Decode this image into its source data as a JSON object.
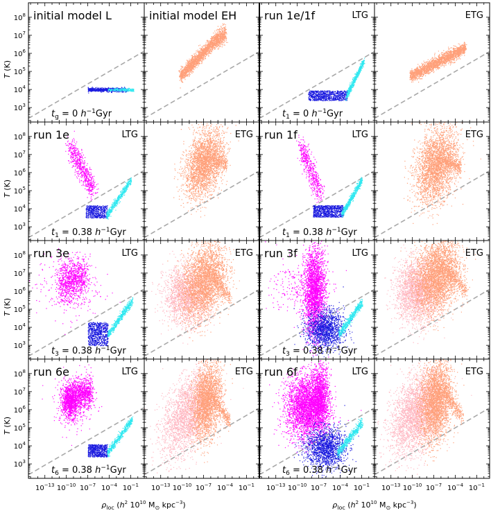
{
  "chart_data": {
    "type": "scatter",
    "x_axis": {
      "label": "ρ_loc (h² 10¹⁰ M⊙ kpc⁻³)",
      "scale": "log",
      "tick_labels": [
        "10^-13",
        "10^-10",
        "10^-7",
        "10^-4",
        "10^-1"
      ],
      "tick_exponents": [
        -13,
        -10,
        -7,
        -4,
        -1
      ],
      "range_log10": [
        -15.3,
        0.8
      ]
    },
    "y_axis": {
      "label": "T (K)",
      "scale": "log",
      "tick_labels": [
        "10^3",
        "10^4",
        "10^5",
        "10^6",
        "10^7",
        "10^8"
      ],
      "tick_exponents": [
        3,
        4,
        5,
        6,
        7,
        8
      ],
      "range_log10": [
        2.2,
        8.8
      ]
    },
    "reference_line": {
      "style": "dashed",
      "color": "#a8a8a8",
      "points_log10": [
        [
          -15.3,
          2.4
        ],
        [
          0.8,
          6.1
        ]
      ]
    },
    "colors": {
      "cold_dense": "#1a1adf",
      "cold_diffuse": "#30e8f0",
      "hot_ltg": "#ff00ff",
      "etg_new": "#ffa07a",
      "etg_old": "#ffb6c1",
      "dash": "#a8a8a8"
    },
    "panels": [
      {
        "row": 0,
        "col": 0,
        "title": "initial model L",
        "tag": "",
        "time_sym": "t",
        "time_sub": "g",
        "time_val": " = 0 ",
        "time_unit": "Gyr",
        "clouds": [
          {
            "color": "cold_dense",
            "n": 700,
            "shape": "hbar",
            "x": [
              -7,
              -1.5
            ],
            "y": 4.0,
            "w": 0.05
          },
          {
            "color": "cold_diffuse",
            "n": 250,
            "shape": "hbar",
            "x": [
              -4.2,
              -0.6
            ],
            "y": 4.0,
            "w": 0.04
          }
        ]
      },
      {
        "row": 0,
        "col": 1,
        "title": "initial model EH",
        "tag": "",
        "clouds": [
          {
            "color": "etg_new",
            "n": 1800,
            "shape": "band",
            "p1": [
              -10.3,
              4.75
            ],
            "p2": [
              -5.0,
              6.9
            ],
            "w": 0.18
          },
          {
            "color": "etg_new",
            "n": 400,
            "shape": "band",
            "p1": [
              -5.2,
              6.75
            ],
            "p2": [
              -4.0,
              7.1
            ],
            "w": 0.22
          }
        ]
      },
      {
        "row": 0,
        "col": 2,
        "title": "run 1e/1f",
        "tag": "LTG",
        "time_sym": "t",
        "time_sub": "1",
        "time_val": " = 0 ",
        "time_unit": "Gyr",
        "clouds": [
          {
            "color": "cold_dense",
            "n": 800,
            "shape": "box",
            "x": [
              -8.5,
              -3.0
            ],
            "y": [
              3.4,
              3.95
            ]
          },
          {
            "color": "cold_diffuse",
            "n": 500,
            "shape": "band",
            "p1": [
              -3.2,
              3.6
            ],
            "p2": [
              -0.7,
              5.6
            ],
            "w": 0.1
          }
        ]
      },
      {
        "row": 0,
        "col": 3,
        "title": "",
        "tag": "ETG",
        "clouds": [
          {
            "color": "etg_new",
            "n": 1800,
            "shape": "band",
            "p1": [
              -10.3,
              4.75
            ],
            "p2": [
              -3.4,
              6.15
            ],
            "w": 0.17
          },
          {
            "color": "etg_new",
            "n": 300,
            "shape": "band",
            "p1": [
              -3.8,
              6.1
            ],
            "p2": [
              -2.6,
              6.35
            ],
            "w": 0.12
          }
        ]
      },
      {
        "row": 1,
        "col": 0,
        "title": "run 1e",
        "tag": "LTG",
        "time_sym": "t",
        "time_sub": "1",
        "time_val": " = 0.38 ",
        "time_unit": "Gyr",
        "clouds": [
          {
            "color": "hot_ltg",
            "n": 650,
            "shape": "band",
            "p1": [
              -9.5,
              7.4
            ],
            "p2": [
              -6.3,
              5.1
            ],
            "w": 0.3,
            "jitter": 0.55
          },
          {
            "color": "cold_dense",
            "n": 500,
            "shape": "box",
            "x": [
              -7.3,
              -4.3
            ],
            "y": [
              3.5,
              4.2
            ]
          },
          {
            "color": "cold_diffuse",
            "n": 500,
            "shape": "band",
            "p1": [
              -4.4,
              3.6
            ],
            "p2": [
              -1.0,
              5.6
            ],
            "w": 0.1
          }
        ]
      },
      {
        "row": 1,
        "col": 1,
        "title": "",
        "tag": "ETG",
        "clouds": [
          {
            "color": "etg_new",
            "n": 2600,
            "shape": "blob",
            "cx": -7.0,
            "cy": 6.5,
            "sx": 1.35,
            "sy": 0.85,
            "skew": 0.25
          },
          {
            "color": "etg_new",
            "n": 300,
            "shape": "band",
            "p1": [
              -6.0,
              6.8
            ],
            "p2": [
              -3.8,
              6.5
            ],
            "w": 0.2
          }
        ]
      },
      {
        "row": 1,
        "col": 2,
        "title": "run 1f",
        "tag": "LTG",
        "time_sym": "t",
        "time_sub": "1",
        "time_val": " = 0.38 ",
        "time_unit": "Gyr",
        "clouds": [
          {
            "color": "hot_ltg",
            "n": 500,
            "shape": "band",
            "p1": [
              -9.6,
              7.5
            ],
            "p2": [
              -6.8,
              4.8
            ],
            "w": 0.35,
            "jitter": 0.5
          },
          {
            "color": "cold_dense",
            "n": 800,
            "shape": "box",
            "x": [
              -7.8,
              -3.6
            ],
            "y": [
              3.55,
              4.2
            ]
          },
          {
            "color": "cold_diffuse",
            "n": 500,
            "shape": "band",
            "p1": [
              -3.8,
              3.7
            ],
            "p2": [
              -1.0,
              5.6
            ],
            "w": 0.1
          }
        ]
      },
      {
        "row": 1,
        "col": 3,
        "title": "",
        "tag": "ETG",
        "clouds": [
          {
            "color": "etg_new",
            "n": 2800,
            "shape": "blob",
            "cx": -6.7,
            "cy": 6.4,
            "sx": 1.45,
            "sy": 0.95,
            "skew": 0.2
          },
          {
            "color": "etg_new",
            "n": 300,
            "shape": "band",
            "p1": [
              -5.6,
              6.7
            ],
            "p2": [
              -3.3,
              6.3
            ],
            "w": 0.2
          }
        ]
      },
      {
        "row": 2,
        "col": 0,
        "title": "run 3e",
        "tag": "LTG",
        "time_sym": "t",
        "time_sub": "3",
        "time_val": " = 0.38 ",
        "time_unit": "Gyr",
        "clouds": [
          {
            "color": "hot_ltg",
            "n": 900,
            "shape": "band",
            "p1": [
              -11.0,
              6.4
            ],
            "p2": [
              -7.2,
              6.9
            ],
            "w": 0.55,
            "jitter": 0.5
          },
          {
            "color": "hot_ltg",
            "n": 300,
            "shape": "scatter",
            "cx": -9.8,
            "cy": 6.3,
            "sx": 2.2,
            "sy": 0.9
          },
          {
            "color": "cold_dense",
            "n": 700,
            "shape": "box",
            "x": [
              -7.0,
              -4.2
            ],
            "y": [
              3.0,
              4.3
            ]
          },
          {
            "color": "cold_diffuse",
            "n": 500,
            "shape": "band",
            "p1": [
              -4.2,
              3.6
            ],
            "p2": [
              -0.8,
              5.5
            ],
            "w": 0.1
          }
        ]
      },
      {
        "row": 2,
        "col": 1,
        "title": "",
        "tag": "ETG",
        "clouds": [
          {
            "color": "etg_old",
            "n": 1800,
            "shape": "blob",
            "cx": -9.4,
            "cy": 5.8,
            "sx": 1.6,
            "sy": 0.8,
            "skew": 0.0
          },
          {
            "color": "etg_new",
            "n": 2800,
            "shape": "blob",
            "cx": -7.0,
            "cy": 6.6,
            "sx": 1.5,
            "sy": 1.0,
            "skew": 0.2
          },
          {
            "color": "etg_new",
            "n": 300,
            "shape": "band",
            "p1": [
              -5.8,
              6.9
            ],
            "p2": [
              -3.3,
              5.6
            ],
            "w": 0.2
          }
        ]
      },
      {
        "row": 2,
        "col": 2,
        "title": "run 3f",
        "tag": "LTG",
        "time_sym": "t",
        "time_sub": "3",
        "time_val": " = 0.38 ",
        "time_unit": "Gyr",
        "clouds": [
          {
            "color": "hot_ltg",
            "n": 2400,
            "shape": "blob",
            "cx": -7.6,
            "cy": 6.0,
            "sx": 0.75,
            "sy": 1.2,
            "skew": 0.0
          },
          {
            "color": "hot_ltg",
            "n": 250,
            "shape": "scatter",
            "cx": -9.8,
            "cy": 6.2,
            "sx": 2.0,
            "sy": 0.8
          },
          {
            "color": "cold_dense",
            "n": 1400,
            "shape": "blob",
            "cx": -6.1,
            "cy": 3.9,
            "sx": 1.3,
            "sy": 0.55,
            "skew": 0.0
          },
          {
            "color": "cold_diffuse",
            "n": 500,
            "shape": "band",
            "p1": [
              -4.2,
              3.6
            ],
            "p2": [
              -1.0,
              5.4
            ],
            "w": 0.12
          }
        ]
      },
      {
        "row": 2,
        "col": 3,
        "title": "",
        "tag": "ETG",
        "clouds": [
          {
            "color": "etg_old",
            "n": 2200,
            "shape": "blob",
            "cx": -9.4,
            "cy": 6.0,
            "sx": 1.5,
            "sy": 0.85,
            "skew": 0.0
          },
          {
            "color": "etg_new",
            "n": 3200,
            "shape": "blob",
            "cx": -6.6,
            "cy": 6.9,
            "sx": 1.5,
            "sy": 1.0,
            "skew": 0.15
          },
          {
            "color": "etg_new",
            "n": 300,
            "shape": "band",
            "p1": [
              -5.2,
              7.1
            ],
            "p2": [
              -2.4,
              6.0
            ],
            "w": 0.22
          }
        ]
      },
      {
        "row": 3,
        "col": 0,
        "title": "run 6e",
        "tag": "LTG",
        "time_sym": "t",
        "time_sub": "6",
        "time_val": " = 0.38 ",
        "time_unit": "Gyr",
        "clouds": [
          {
            "color": "hot_ltg",
            "n": 1100,
            "shape": "blob",
            "cx": -9.5,
            "cy": 6.5,
            "sx": 0.6,
            "sy": 0.45,
            "skew": 0.0
          },
          {
            "color": "hot_ltg",
            "n": 700,
            "shape": "band",
            "p1": [
              -8.7,
              6.9
            ],
            "p2": [
              -6.6,
              7.0
            ],
            "w": 0.4,
            "jitter": 0.5
          },
          {
            "color": "hot_ltg",
            "n": 250,
            "shape": "scatter",
            "cx": -8.8,
            "cy": 6.4,
            "sx": 1.5,
            "sy": 0.8
          },
          {
            "color": "cold_dense",
            "n": 600,
            "shape": "box",
            "x": [
              -7.0,
              -4.3
            ],
            "y": [
              3.4,
              4.1
            ]
          },
          {
            "color": "cold_diffuse",
            "n": 500,
            "shape": "band",
            "p1": [
              -4.3,
              3.6
            ],
            "p2": [
              -0.8,
              5.5
            ],
            "w": 0.1
          }
        ]
      },
      {
        "row": 3,
        "col": 1,
        "title": "",
        "tag": "ETG",
        "clouds": [
          {
            "color": "etg_old",
            "n": 2400,
            "shape": "blob",
            "cx": -9.2,
            "cy": 5.8,
            "sx": 1.8,
            "sy": 1.0,
            "skew": 0.3
          },
          {
            "color": "etg_new",
            "n": 2400,
            "shape": "blob",
            "cx": -6.6,
            "cy": 6.5,
            "sx": 1.0,
            "sy": 1.0,
            "skew": 0.25
          },
          {
            "color": "etg_new",
            "n": 300,
            "shape": "band",
            "p1": [
              -5.8,
              6.7
            ],
            "p2": [
              -3.4,
              5.3
            ],
            "w": 0.2
          }
        ]
      },
      {
        "row": 3,
        "col": 2,
        "title": "run 6f",
        "tag": "LTG",
        "time_sym": "t",
        "time_sub": "6",
        "time_val": " = 0.38 ",
        "time_unit": "Gyr",
        "clouds": [
          {
            "color": "hot_ltg",
            "n": 2800,
            "shape": "blob",
            "cx": -8.7,
            "cy": 6.2,
            "sx": 1.35,
            "sy": 0.85,
            "skew": 0.0
          },
          {
            "color": "hot_ltg",
            "n": 1200,
            "shape": "blob",
            "cx": -6.8,
            "cy": 6.7,
            "sx": 0.6,
            "sy": 0.9,
            "skew": 0.0
          },
          {
            "color": "hot_ltg",
            "n": 250,
            "shape": "scatter",
            "cx": -9.0,
            "cy": 5.9,
            "sx": 2.2,
            "sy": 1.0
          },
          {
            "color": "cold_dense",
            "n": 1500,
            "shape": "blob",
            "cx": -6.1,
            "cy": 3.9,
            "sx": 1.4,
            "sy": 0.55,
            "skew": 0.0
          },
          {
            "color": "cold_diffuse",
            "n": 500,
            "shape": "band",
            "p1": [
              -4.4,
              3.6
            ],
            "p2": [
              -1.0,
              5.3
            ],
            "w": 0.12
          }
        ]
      },
      {
        "row": 3,
        "col": 3,
        "title": "",
        "tag": "ETG",
        "clouds": [
          {
            "color": "etg_old",
            "n": 2800,
            "shape": "blob",
            "cx": -9.5,
            "cy": 5.8,
            "sx": 1.8,
            "sy": 1.0,
            "skew": 0.25
          },
          {
            "color": "etg_new",
            "n": 2800,
            "shape": "blob",
            "cx": -6.8,
            "cy": 6.5,
            "sx": 1.1,
            "sy": 1.1,
            "skew": 0.2
          },
          {
            "color": "etg_new",
            "n": 300,
            "shape": "band",
            "p1": [
              -5.6,
              7.0
            ],
            "p2": [
              -3.0,
              5.6
            ],
            "w": 0.22
          }
        ]
      }
    ]
  }
}
